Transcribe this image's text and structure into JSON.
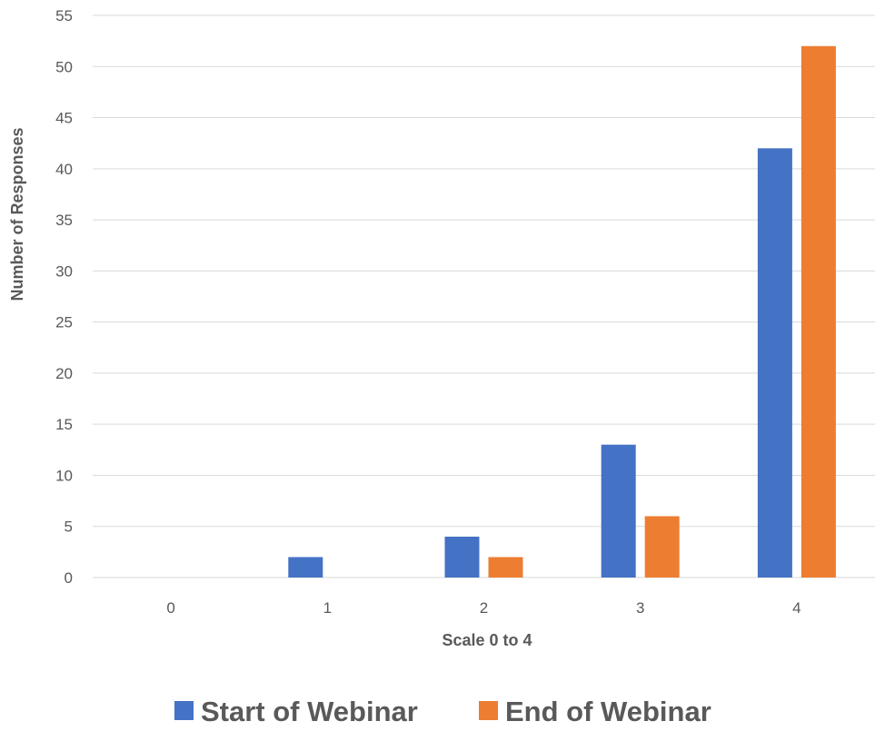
{
  "chart_data": {
    "type": "bar",
    "xlabel": "Scale 0 to 4",
    "ylabel": "Number of Responses",
    "categories": [
      "0",
      "1",
      "2",
      "3",
      "4"
    ],
    "series": [
      {
        "name": "Start of Webinar",
        "color": "#4472C4",
        "values": [
          0,
          2,
          4,
          13,
          42
        ]
      },
      {
        "name": "End of Webinar",
        "color": "#ED7D31",
        "values": [
          0,
          0,
          2,
          6,
          52
        ]
      }
    ],
    "ylim": [
      0,
      55
    ],
    "yticks": [
      "0",
      "5",
      "10",
      "15",
      "20",
      "25",
      "30",
      "35",
      "40",
      "45",
      "50",
      "55"
    ],
    "grid": true,
    "legend_position": "bottom"
  }
}
